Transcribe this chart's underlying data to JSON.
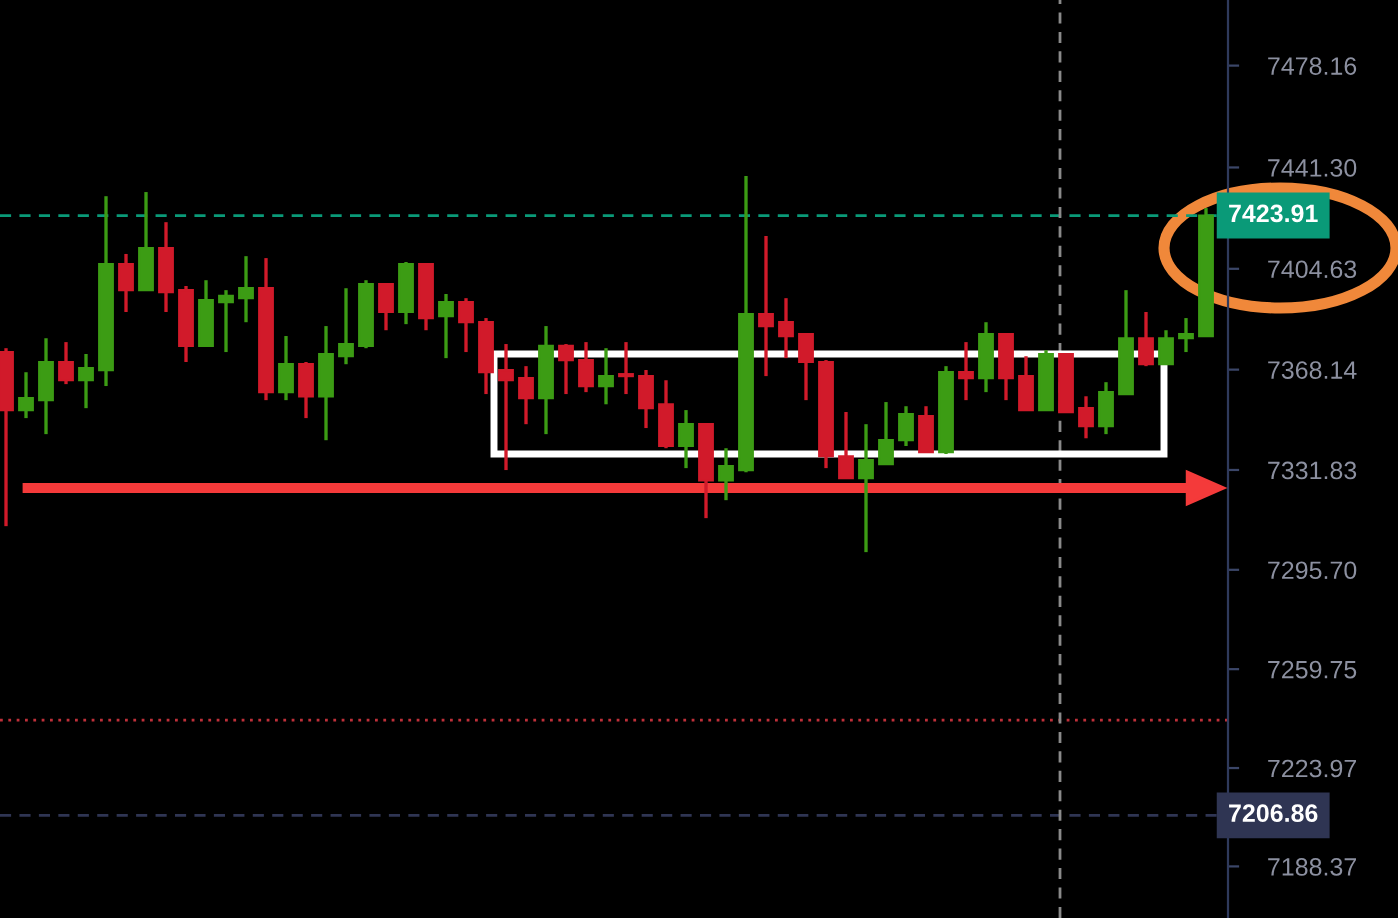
{
  "chart_data": {
    "type": "candlestick",
    "categories": [
      null,
      null,
      null,
      null,
      null,
      null,
      null,
      null,
      null,
      null,
      null,
      null,
      null,
      null,
      null,
      null,
      null,
      null,
      null,
      null,
      null,
      null,
      null,
      null,
      null,
      null,
      null,
      null,
      null,
      null,
      null,
      null,
      null,
      null,
      null,
      null,
      null,
      null,
      null,
      null,
      null,
      null,
      null,
      null,
      null,
      null,
      null,
      null,
      null,
      null,
      null,
      null,
      null,
      null,
      null,
      null,
      null,
      null,
      null,
      null,
      null
    ],
    "ohlc": [
      [
        7374.5,
        7375.9,
        7311.5,
        7353.5
      ],
      [
        7353.5,
        7367.2,
        7350.6,
        7357.8
      ],
      [
        7357.1,
        7379.5,
        7344.8,
        7370.9
      ],
      [
        7370.9,
        7378.1,
        7362.9,
        7364.3
      ],
      [
        7364.3,
        7373.8,
        7354.2,
        7368.7
      ],
      [
        7368.0,
        7430.9,
        7362.2,
        7406.3
      ],
      [
        7406.3,
        7410.0,
        7389.0,
        7396.9
      ],
      [
        7396.9,
        7432.4,
        7396.9,
        7412.1
      ],
      [
        7412.1,
        7421.5,
        7389.0,
        7396.2
      ],
      [
        7396.9,
        7398.4,
        7370.9,
        7376.7
      ],
      [
        7376.7,
        7400.5,
        7376.7,
        7393.3
      ],
      [
        7392.6,
        7396.9,
        7374.5,
        7394.8
      ],
      [
        7394.0,
        7409.2,
        7385.3,
        7397.6
      ],
      [
        7397.6,
        7408.5,
        7357.1,
        7360.0
      ],
      [
        7360.0,
        7380.3,
        7357.1,
        7370.1
      ],
      [
        7370.1,
        7370.9,
        7350.6,
        7358.5
      ],
      [
        7358.5,
        7383.9,
        7342.6,
        7373.8
      ],
      [
        7373.0,
        7397.6,
        7370.1,
        7377.4
      ],
      [
        7376.7,
        7400.5,
        7375.9,
        7399.1
      ],
      [
        7399.1,
        7399.1,
        7382.4,
        7389.0
      ],
      [
        7389.0,
        7407.1,
        7384.6,
        7406.3
      ],
      [
        7406.3,
        7406.3,
        7382.4,
        7386.8
      ],
      [
        7387.5,
        7395.5,
        7372.3,
        7392.6
      ],
      [
        7392.6,
        7394.0,
        7374.5,
        7385.3
      ],
      [
        7385.3,
        7386.8,
        7359.3,
        7367.2
      ],
      [
        7368.0,
        7377.4,
        7331.8,
        7364.3
      ],
      [
        7365.1,
        7369.4,
        7348.4,
        7357.8
      ],
      [
        7357.8,
        7383.9,
        7344.8,
        7376.7
      ],
      [
        7376.7,
        7377.4,
        7359.3,
        7371.6
      ],
      [
        7371.6,
        7378.1,
        7360.0,
        7362.2
      ],
      [
        7362.2,
        7375.9,
        7355.6,
        7365.8
      ],
      [
        7366.5,
        7378.1,
        7359.3,
        7365.8
      ],
      [
        7365.8,
        7368.0,
        7347.0,
        7354.2
      ],
      [
        7355.6,
        7364.3,
        7339.7,
        7340.5
      ],
      [
        7340.5,
        7353.5,
        7332.5,
        7348.4
      ],
      [
        7348.4,
        7348.4,
        7314.4,
        7328.1
      ],
      [
        7328.1,
        7339.7,
        7320.9,
        7333.2
      ],
      [
        7331.8,
        7438.2,
        7331.0,
        7388.2
      ],
      [
        7388.2,
        7416.5,
        7365.8,
        7383.9
      ],
      [
        7385.3,
        7394.0,
        7372.3,
        7380.3
      ],
      [
        7381.0,
        7381.0,
        7357.1,
        7370.9
      ],
      [
        7370.9,
        7371.6,
        7332.5,
        7336.8
      ],
      [
        7336.8,
        7352.8,
        7328.9,
        7328.9
      ],
      [
        7328.9,
        7348.4,
        7302.1,
        7335.4
      ],
      [
        7333.9,
        7356.4,
        7333.9,
        7342.6
      ],
      [
        7342.6,
        7354.9,
        7340.5,
        7352.0
      ],
      [
        7351.3,
        7354.9,
        7338.3,
        7338.3
      ],
      [
        7338.3,
        7369.4,
        7337.6,
        7367.2
      ],
      [
        7367.2,
        7378.1,
        7357.1,
        7365.1
      ],
      [
        7365.1,
        7385.3,
        7360.0,
        7381.0
      ],
      [
        7381.0,
        7381.0,
        7357.1,
        7365.1
      ],
      [
        7365.8,
        7373.0,
        7353.5,
        7353.5
      ],
      [
        7353.5,
        7375.2,
        7353.5,
        7373.8
      ],
      [
        7373.8,
        7373.8,
        7352.8,
        7352.8
      ],
      [
        7354.2,
        7358.5,
        7343.3,
        7347.7
      ],
      [
        7347.7,
        7363.6,
        7344.8,
        7360.0
      ],
      [
        7359.3,
        7396.9,
        7359.3,
        7379.5
      ],
      [
        7379.5,
        7389.0,
        7369.4,
        7370.1
      ],
      [
        7370.1,
        7382.4,
        7370.1,
        7379.5
      ],
      [
        7379.5,
        7386.8,
        7374.5,
        7381.0
      ],
      [
        7380.3,
        7426.6,
        7380.3,
        7423.9
      ]
    ],
    "colors": [
      "#d11a2a",
      "#3c9c14",
      "#3c9c14",
      "#d11a2a",
      "#3c9c14",
      "#3c9c14",
      "#d11a2a",
      "#3c9c14",
      "#d11a2a",
      "#d11a2a",
      "#3c9c14",
      "#3c9c14",
      "#3c9c14",
      "#d11a2a",
      "#3c9c14",
      "#d11a2a",
      "#3c9c14",
      "#3c9c14",
      "#3c9c14",
      "#d11a2a",
      "#3c9c14",
      "#d11a2a",
      "#3c9c14",
      "#d11a2a",
      "#d11a2a",
      "#d11a2a",
      "#d11a2a",
      "#3c9c14",
      "#d11a2a",
      "#d11a2a",
      "#3c9c14",
      "#d11a2a",
      "#d11a2a",
      "#d11a2a",
      "#3c9c14",
      "#d11a2a",
      "#3c9c14",
      "#3c9c14",
      "#d11a2a",
      "#d11a2a",
      "#d11a2a",
      "#d11a2a",
      "#d11a2a",
      "#3c9c14",
      "#3c9c14",
      "#3c9c14",
      "#d11a2a",
      "#3c9c14",
      "#d11a2a",
      "#3c9c14",
      "#d11a2a",
      "#d11a2a",
      "#3c9c14",
      "#d11a2a",
      "#d11a2a",
      "#3c9c14",
      "#3c9c14",
      "#d11a2a",
      "#3c9c14",
      "#3c9c14",
      "#3c9c14"
    ],
    "ylim": [
      7169.7,
      7501.9
    ],
    "yticks": [
      7188.37,
      7223.97,
      7259.75,
      {
        "value": 7295.7,
        "label": "7295.70"
      },
      7331.83,
      7368.14,
      7404.63,
      {
        "value": 7441.3,
        "label": "7441.30"
      },
      7478.16
    ],
    "ref_lines": [
      {
        "axis": "y",
        "value": 7423.91,
        "label": "7423.91",
        "color": "#0a9a78",
        "line_style": "dashed"
      },
      {
        "axis": "y",
        "value": 7241.3,
        "color": "#c0303a",
        "line_style": "dotted"
      },
      {
        "axis": "y",
        "value": 7206.86,
        "label": "7206.86",
        "color": "#2f3553",
        "line_style": "dashed"
      }
    ],
    "grid": false,
    "legend": false
  }
}
